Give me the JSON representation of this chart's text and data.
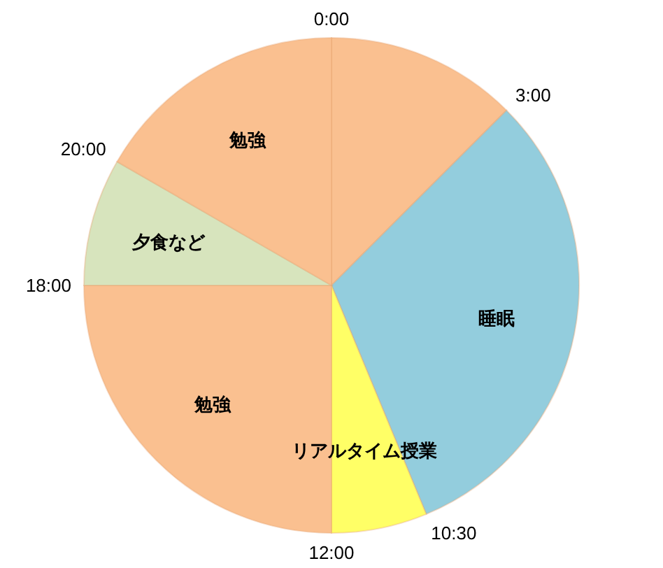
{
  "chart_data": {
    "type": "pie",
    "categories": [
      null,
      "睡眠",
      "リアルタイム授業",
      "勉強",
      "夕食など",
      "勉強"
    ],
    "values": [
      12.5,
      31.25,
      6.25,
      25,
      8.33,
      16.67
    ],
    "colors": [
      "#fac090",
      "#93cddd",
      "#ffff66",
      "#fac090",
      "#d7e4bd",
      "#fac090"
    ],
    "annotations": [
      "0:00",
      "3:00",
      "10:30",
      "12:00",
      "18:00",
      "20:00"
    ]
  }
}
